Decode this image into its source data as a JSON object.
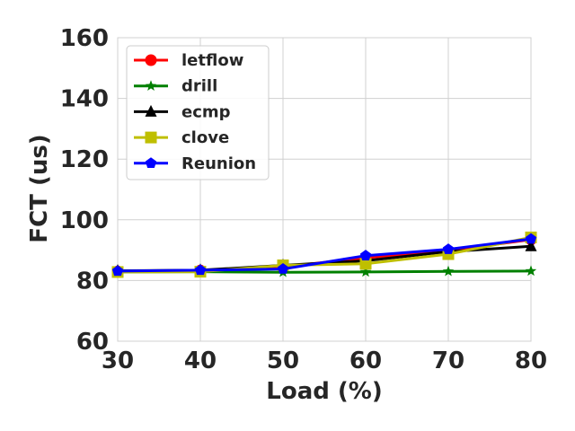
{
  "chart_data": {
    "type": "line",
    "xlabel": "Load (%)",
    "ylabel": "FCT (us)",
    "x": [
      30,
      40,
      50,
      60,
      70,
      80
    ],
    "xlim": [
      30,
      80
    ],
    "ylim": [
      60,
      160
    ],
    "xticks": [
      "30",
      "40",
      "50",
      "60",
      "70",
      "80"
    ],
    "yticks": [
      "60",
      "80",
      "100",
      "120",
      "140",
      "160"
    ],
    "grid": true,
    "legend_position": "upper-left",
    "series": [
      {
        "name": "letflow",
        "color": "#ff0000",
        "marker": "circle",
        "values": [
          83.0,
          83.3,
          84.5,
          87.5,
          89.8,
          93.5
        ]
      },
      {
        "name": "drill",
        "color": "#008000",
        "marker": "star",
        "values": [
          82.8,
          82.9,
          82.7,
          82.8,
          83.0,
          83.1
        ]
      },
      {
        "name": "ecmp",
        "color": "#000000",
        "marker": "triangle",
        "values": [
          83.2,
          83.4,
          85.0,
          86.5,
          89.5,
          91.3
        ]
      },
      {
        "name": "clove",
        "color": "#bfbf00",
        "marker": "square",
        "values": [
          82.8,
          82.9,
          85.0,
          85.5,
          88.7,
          94.2
        ]
      },
      {
        "name": "Reunion",
        "color": "#0000ff",
        "marker": "pentagon",
        "values": [
          83.1,
          83.4,
          83.8,
          88.2,
          90.3,
          93.7
        ]
      }
    ]
  }
}
